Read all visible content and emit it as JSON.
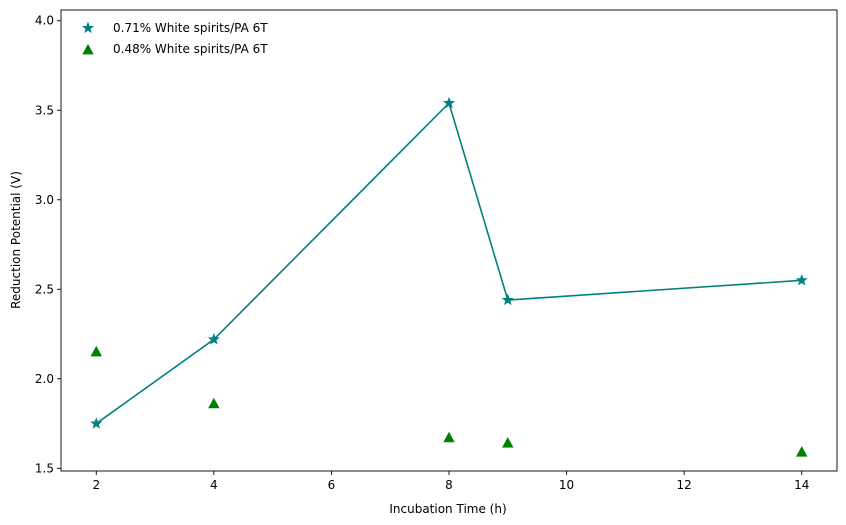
{
  "chart_data": {
    "type": "line",
    "xlabel": "Incubation Time (h)",
    "ylabel": "Reduction Potential (V)",
    "xlim": [
      1.4,
      14.6
    ],
    "ylim": [
      1.485,
      4.06
    ],
    "xticks": [
      2,
      4,
      6,
      8,
      10,
      12,
      14
    ],
    "yticks": [
      1.5,
      2.0,
      2.5,
      3.0,
      3.5,
      4.0
    ],
    "x": [
      2,
      4,
      8,
      9,
      14
    ],
    "series": [
      {
        "name": "0.71% White spirits/PA 6T",
        "values": [
          1.75,
          2.22,
          3.54,
          2.44,
          2.55
        ],
        "color": "#008080",
        "marker": "star",
        "line": true
      },
      {
        "name": "0.48% White spirits/PA 6T",
        "values": [
          2.15,
          1.86,
          1.67,
          1.64,
          1.59
        ],
        "color": "#008000",
        "marker": "triangle",
        "line": false
      }
    ],
    "legend_position": "top-left",
    "grid": false
  }
}
